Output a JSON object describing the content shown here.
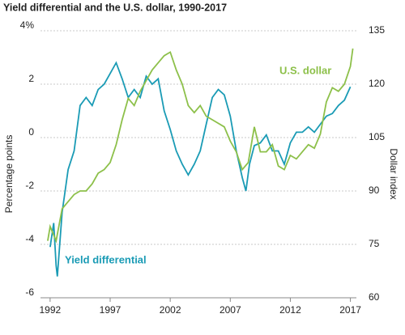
{
  "chart_data": {
    "type": "line",
    "title": "Yield differential and the U.S. dollar, 1990-2017",
    "y_label": "Percentage points",
    "y2_label": "Dollar index",
    "xlim": [
      1991.2,
      2017.5
    ],
    "xticks": [
      1992,
      1997,
      2002,
      2007,
      2012,
      2017
    ],
    "ylim": [
      -6,
      4
    ],
    "yticks": [
      -6,
      -4,
      -2,
      0,
      2,
      {
        "value": 4,
        "label": "4%"
      }
    ],
    "y2lim": [
      60,
      135
    ],
    "y2ticks": [
      60,
      75,
      90,
      105,
      120,
      135
    ],
    "grid": true,
    "series": [
      {
        "name": "Yield differential",
        "color": "#1a9bb5",
        "x": [
          1992,
          1992.3,
          1992.5,
          1992.6,
          1993,
          1993.5,
          1994,
          1994.5,
          1995,
          1995.5,
          1996,
          1996.5,
          1997,
          1997.5,
          1998,
          1998.5,
          1999,
          1999.5,
          2000,
          2000.5,
          2001,
          2001.5,
          2002,
          2002.5,
          2003,
          2003.5,
          2004,
          2004.5,
          2005,
          2005.5,
          2006,
          2006.5,
          2007,
          2007.5,
          2008,
          2008.3,
          2008.6,
          2009,
          2009.5,
          2010,
          2010.5,
          2011,
          2011.5,
          2012,
          2012.5,
          2013,
          2013.5,
          2014,
          2014.5,
          2015,
          2015.5,
          2016,
          2016.5,
          2017
        ],
        "values": [
          -4.1,
          -3.2,
          -4.8,
          -5.2,
          -2.8,
          -1.2,
          -0.5,
          1.2,
          1.5,
          1.2,
          1.8,
          2.0,
          2.4,
          2.8,
          2.2,
          1.5,
          1.8,
          1.5,
          2.3,
          2.0,
          2.2,
          1.0,
          0.3,
          -0.5,
          -1.0,
          -1.4,
          -1.0,
          -0.5,
          0.5,
          1.5,
          1.8,
          1.6,
          0.8,
          -0.5,
          -1.5,
          -2.0,
          -1.0,
          -0.3,
          -0.2,
          0.1,
          -0.5,
          -0.5,
          -1.0,
          -0.2,
          0.2,
          0.2,
          0.4,
          0.2,
          0.5,
          0.8,
          0.9,
          1.2,
          1.4,
          1.9
        ]
      },
      {
        "name": "U.S. dollar",
        "color": "#8dc04a",
        "axis": "y2",
        "x": [
          1991.8,
          1992,
          1992.5,
          1993,
          1993.5,
          1994,
          1994.5,
          1995,
          1995.5,
          1996,
          1996.5,
          1997,
          1997.5,
          1998,
          1998.5,
          1999,
          1999.5,
          2000,
          2000.5,
          2001,
          2001.5,
          2002,
          2002.5,
          2003,
          2003.5,
          2004,
          2004.5,
          2005,
          2005.5,
          2006,
          2006.5,
          2007,
          2007.5,
          2008,
          2008.5,
          2009,
          2009.5,
          2010,
          2010.5,
          2011,
          2011.5,
          2012,
          2012.5,
          2013,
          2013.5,
          2014,
          2014.5,
          2015,
          2015.5,
          2016,
          2016.5,
          2017,
          2017.2
        ],
        "values": [
          76,
          80,
          76,
          85,
          87,
          89,
          90,
          90,
          92,
          95,
          96,
          98,
          103,
          110,
          116,
          114,
          118,
          121,
          124,
          126,
          128,
          129,
          124,
          120,
          114,
          112,
          114,
          111,
          110,
          109,
          108,
          104,
          101,
          96,
          98,
          108,
          101,
          101,
          103,
          97,
          96,
          100,
          99,
          101,
          103,
          102,
          106,
          115,
          119,
          118,
          120,
          125,
          130
        ]
      }
    ]
  }
}
